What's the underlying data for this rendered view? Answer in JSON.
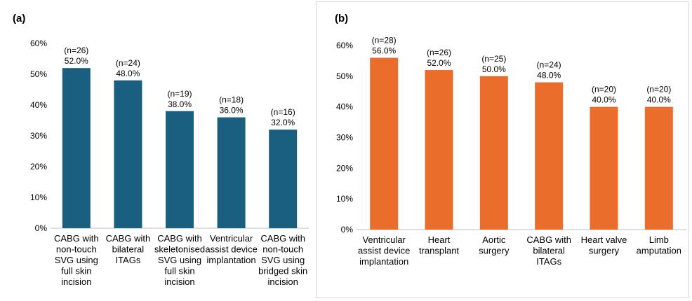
{
  "panels": [
    {
      "panel_label": "(a)",
      "color": "#1a5e80"
    },
    {
      "panel_label": "(b)",
      "color": "#ea6d2b"
    }
  ],
  "chart_data": [
    {
      "type": "bar",
      "categories": [
        [
          "CABG with",
          "non-touch",
          "SVG using",
          "full skin",
          "incision"
        ],
        [
          "CABG with",
          "bilateral",
          "ITAGs"
        ],
        [
          "CABG with",
          "skeletonised",
          "SVG using",
          "full skin",
          "incision"
        ],
        [
          "Ventricular",
          "assist device",
          "implantation"
        ],
        [
          "CABG with",
          "non-touch",
          "SVG using",
          "bridged skin",
          "incision"
        ]
      ],
      "values": [
        52.0,
        48.0,
        38.0,
        36.0,
        32.0
      ],
      "value_labels": [
        "52.0%",
        "48.0%",
        "38.0%",
        "36.0%",
        "32.0%"
      ],
      "n_labels": [
        "(n=26)",
        "(n=24)",
        "(n=19)",
        "(n=18)",
        "(n=16)"
      ],
      "yticks": [
        "0%",
        "10%",
        "20%",
        "30%",
        "40%",
        "50%",
        "60%"
      ],
      "ylim": [
        0,
        60
      ],
      "title": "",
      "xlabel": "",
      "ylabel": "",
      "grid": false,
      "color": "#1a5e80"
    },
    {
      "type": "bar",
      "categories": [
        [
          "Ventricular",
          "assist device",
          "implantation"
        ],
        [
          "Heart",
          "transplant"
        ],
        [
          "Aortic",
          "surgery"
        ],
        [
          "CABG with",
          "bilateral",
          "ITAGs"
        ],
        [
          "Heart valve",
          "surgery"
        ],
        [
          "Limb",
          "amputation"
        ]
      ],
      "values": [
        56.0,
        52.0,
        50.0,
        48.0,
        40.0,
        40.0
      ],
      "value_labels": [
        "56.0%",
        "52.0%",
        "50.0%",
        "48.0%",
        "40.0%",
        "40.0%"
      ],
      "n_labels": [
        "(n=28)",
        "(n=26)",
        "(n=25)",
        "(n=24)",
        "(n=20)",
        "(n=20)"
      ],
      "yticks": [
        "0%",
        "10%",
        "20%",
        "30%",
        "40%",
        "50%",
        "60%"
      ],
      "ylim": [
        0,
        60
      ],
      "title": "",
      "xlabel": "",
      "ylabel": "",
      "grid": false,
      "color": "#ea6d2b"
    }
  ]
}
